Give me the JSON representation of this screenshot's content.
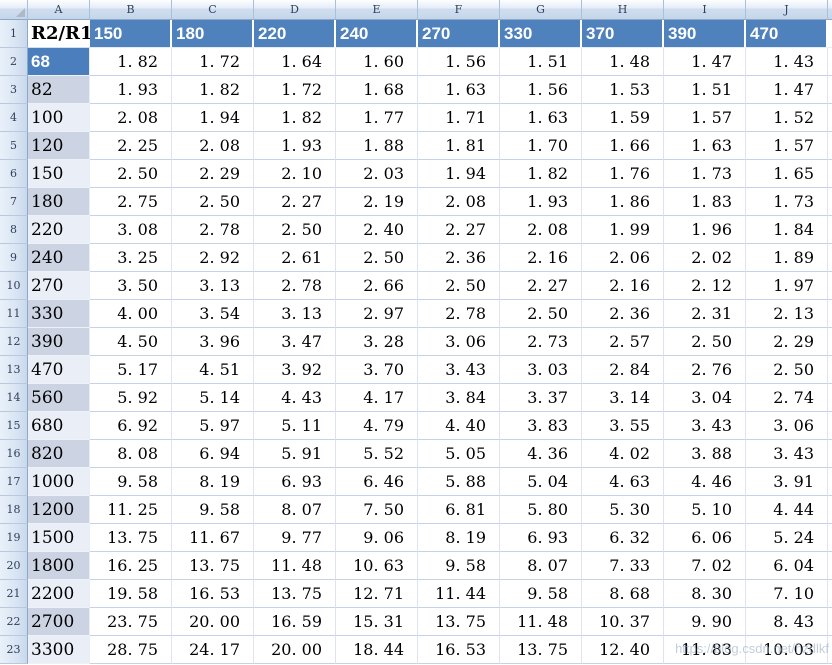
{
  "colors": {
    "header_fill": "#4f81bd",
    "selected_fill": "#4a7ebc",
    "band_dark": "#ccd3e3",
    "band_light": "#eaeef6",
    "gridline": "#c6d3e7"
  },
  "sheet": {
    "column_letters": [
      "A",
      "B",
      "C",
      "D",
      "E",
      "F",
      "G",
      "H",
      "I",
      "J"
    ],
    "header_row": {
      "row_number": 1,
      "a_label": "R2/R1",
      "values": [
        150,
        180,
        220,
        240,
        270,
        330,
        370,
        390,
        470
      ]
    },
    "rows": [
      {
        "row_number": 2,
        "label": 68,
        "shade": "selected",
        "values": [
          1.82,
          1.72,
          1.64,
          1.6,
          1.56,
          1.51,
          1.48,
          1.47,
          1.43
        ]
      },
      {
        "row_number": 3,
        "label": 82,
        "shade": "dark",
        "values": [
          1.93,
          1.82,
          1.72,
          1.68,
          1.63,
          1.56,
          1.53,
          1.51,
          1.47
        ]
      },
      {
        "row_number": 4,
        "label": 100,
        "shade": "light",
        "values": [
          2.08,
          1.94,
          1.82,
          1.77,
          1.71,
          1.63,
          1.59,
          1.57,
          1.52
        ]
      },
      {
        "row_number": 5,
        "label": 120,
        "shade": "dark",
        "values": [
          2.25,
          2.08,
          1.93,
          1.88,
          1.81,
          1.7,
          1.66,
          1.63,
          1.57
        ]
      },
      {
        "row_number": 6,
        "label": 150,
        "shade": "light",
        "values": [
          2.5,
          2.29,
          2.1,
          2.03,
          1.94,
          1.82,
          1.76,
          1.73,
          1.65
        ]
      },
      {
        "row_number": 7,
        "label": 180,
        "shade": "dark",
        "values": [
          2.75,
          2.5,
          2.27,
          2.19,
          2.08,
          1.93,
          1.86,
          1.83,
          1.73
        ]
      },
      {
        "row_number": 8,
        "label": 220,
        "shade": "light",
        "values": [
          3.08,
          2.78,
          2.5,
          2.4,
          2.27,
          2.08,
          1.99,
          1.96,
          1.84
        ]
      },
      {
        "row_number": 9,
        "label": 240,
        "shade": "dark",
        "values": [
          3.25,
          2.92,
          2.61,
          2.5,
          2.36,
          2.16,
          2.06,
          2.02,
          1.89
        ]
      },
      {
        "row_number": 10,
        "label": 270,
        "shade": "light",
        "values": [
          3.5,
          3.13,
          2.78,
          2.66,
          2.5,
          2.27,
          2.16,
          2.12,
          1.97
        ]
      },
      {
        "row_number": 11,
        "label": 330,
        "shade": "dark",
        "values": [
          4.0,
          3.54,
          3.13,
          2.97,
          2.78,
          2.5,
          2.36,
          2.31,
          2.13
        ]
      },
      {
        "row_number": 12,
        "label": 390,
        "shade": "dark",
        "values": [
          4.5,
          3.96,
          3.47,
          3.28,
          3.06,
          2.73,
          2.57,
          2.5,
          2.29
        ]
      },
      {
        "row_number": 13,
        "label": 470,
        "shade": "light",
        "values": [
          5.17,
          4.51,
          3.92,
          3.7,
          3.43,
          3.03,
          2.84,
          2.76,
          2.5
        ]
      },
      {
        "row_number": 14,
        "label": 560,
        "shade": "dark",
        "values": [
          5.92,
          5.14,
          4.43,
          4.17,
          3.84,
          3.37,
          3.14,
          3.04,
          2.74
        ]
      },
      {
        "row_number": 15,
        "label": 680,
        "shade": "light",
        "values": [
          6.92,
          5.97,
          5.11,
          4.79,
          4.4,
          3.83,
          3.55,
          3.43,
          3.06
        ]
      },
      {
        "row_number": 16,
        "label": 820,
        "shade": "dark",
        "values": [
          8.08,
          6.94,
          5.91,
          5.52,
          5.05,
          4.36,
          4.02,
          3.88,
          3.43
        ]
      },
      {
        "row_number": 17,
        "label": 1000,
        "shade": "light",
        "values": [
          9.58,
          8.19,
          6.93,
          6.46,
          5.88,
          5.04,
          4.63,
          4.46,
          3.91
        ]
      },
      {
        "row_number": 18,
        "label": 1200,
        "shade": "dark",
        "values": [
          11.25,
          9.58,
          8.07,
          7.5,
          6.81,
          5.8,
          5.3,
          5.1,
          4.44
        ]
      },
      {
        "row_number": 19,
        "label": 1500,
        "shade": "light",
        "values": [
          13.75,
          11.67,
          9.77,
          9.06,
          8.19,
          6.93,
          6.32,
          6.06,
          5.24
        ]
      },
      {
        "row_number": 20,
        "label": 1800,
        "shade": "dark",
        "values": [
          16.25,
          13.75,
          11.48,
          10.63,
          9.58,
          8.07,
          7.33,
          7.02,
          6.04
        ]
      },
      {
        "row_number": 21,
        "label": 2200,
        "shade": "light",
        "values": [
          19.58,
          16.53,
          13.75,
          12.71,
          11.44,
          9.58,
          8.68,
          8.3,
          7.1
        ]
      },
      {
        "row_number": 22,
        "label": 2700,
        "shade": "dark",
        "values": [
          23.75,
          20.0,
          16.59,
          15.31,
          13.75,
          11.48,
          10.37,
          9.9,
          8.43
        ]
      },
      {
        "row_number": 23,
        "label": 3300,
        "shade": "light",
        "values": [
          28.75,
          24.17,
          20.0,
          18.44,
          16.53,
          13.75,
          12.4,
          11.83,
          10.03
        ]
      }
    ]
  },
  "watermark": {
    "text": "https://blog.csdn.net/hzdlkf"
  }
}
